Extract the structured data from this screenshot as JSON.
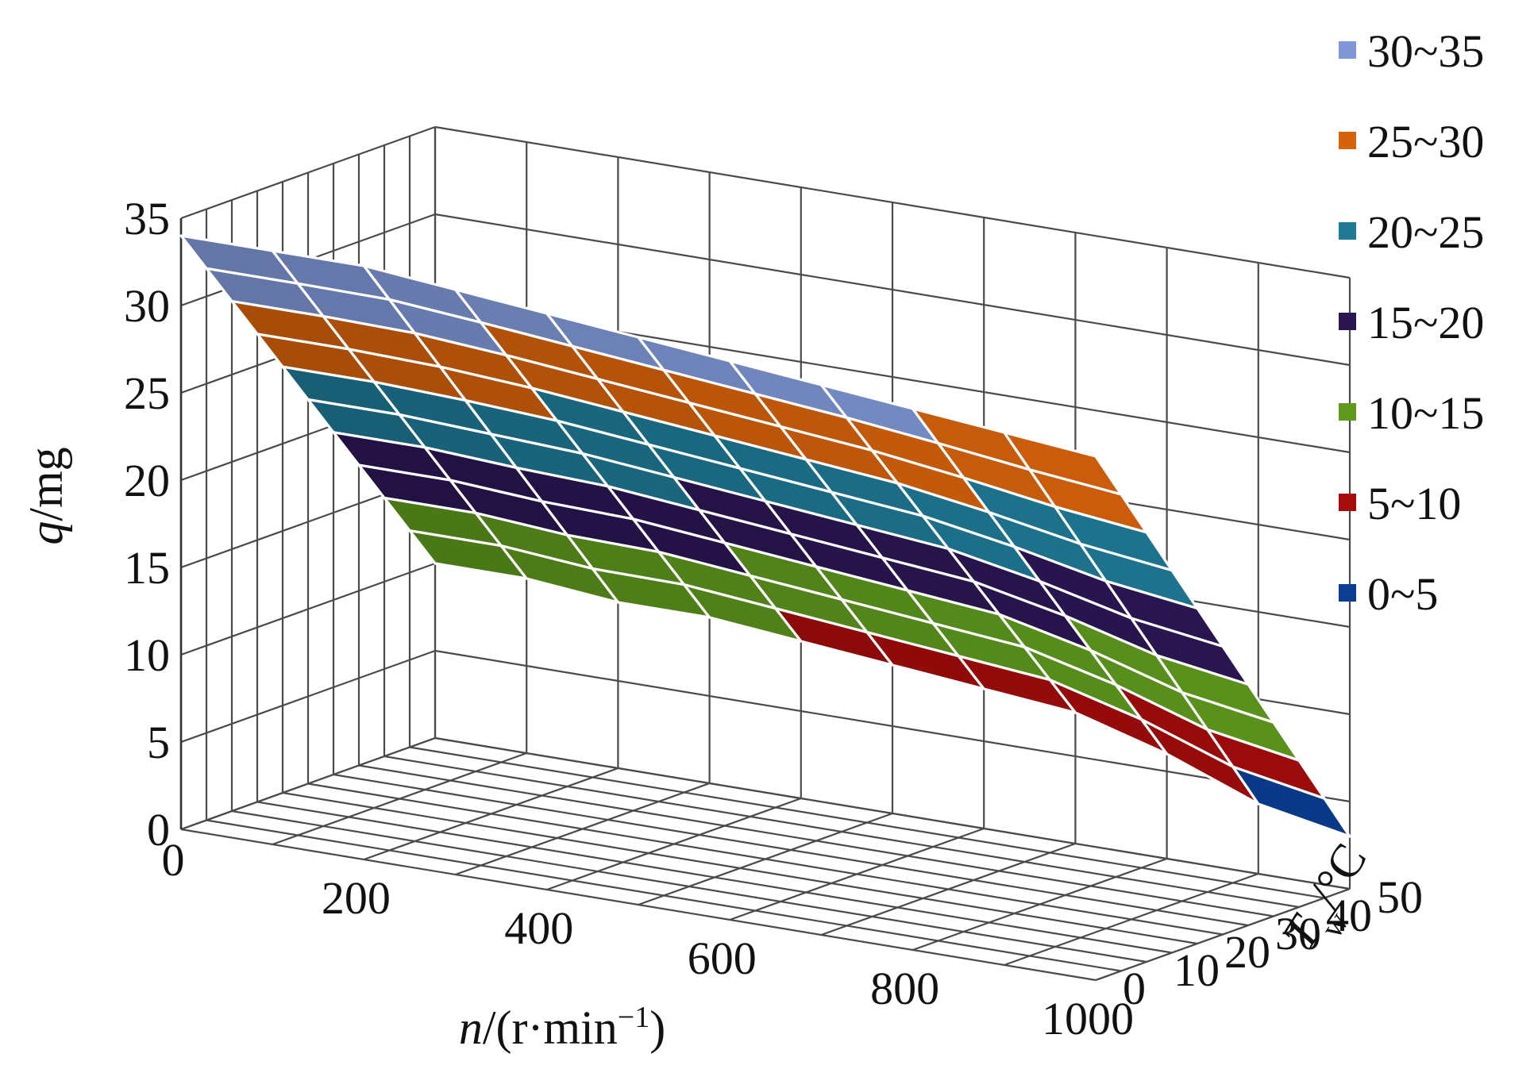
{
  "chart_data": {
    "type": "surface",
    "title": "",
    "xlabel": {
      "var": "n",
      "rest": "/(r·min",
      "sup": "−1",
      "close": ")"
    },
    "ylabel": {
      "var": "q",
      "rest": "/mg"
    },
    "zlabel": {
      "var": "T",
      "sub": "w",
      "rest": "/°C"
    },
    "x_ticks": [
      "0",
      "200",
      "400",
      "600",
      "800",
      "1000"
    ],
    "z_ticks": [
      "0",
      "10",
      "20",
      "30",
      "40",
      "50"
    ],
    "y_ticks": [
      "0",
      "5",
      "10",
      "15",
      "20",
      "25",
      "30",
      "35"
    ],
    "xlim": [
      0,
      1000
    ],
    "zlim": [
      0,
      50
    ],
    "ylim": [
      0,
      35
    ],
    "legend_position": "right",
    "legend": [
      {
        "label": "30~35",
        "color": "#7f97d6"
      },
      {
        "label": "25~30",
        "color": "#d6620c"
      },
      {
        "label": "20~25",
        "color": "#1f7a96"
      },
      {
        "label": "15~20",
        "color": "#2b1654"
      },
      {
        "label": "10~15",
        "color": "#5f9a1e"
      },
      {
        "label": "5~10",
        "color": "#a50c0c"
      },
      {
        "label": "0~5",
        "color": "#0b3d91"
      }
    ],
    "grid": true,
    "surface": {
      "n_values": [
        0,
        100,
        200,
        300,
        400,
        500,
        600,
        700,
        800,
        900,
        1000
      ],
      "tw_values": [
        0,
        5,
        10,
        15,
        20,
        25,
        30,
        35,
        40,
        45,
        50
      ],
      "q_at_tw0": [
        34,
        34,
        34,
        33.5,
        33,
        32.5,
        32,
        31.5,
        31,
        30.5,
        30
      ],
      "q_at_tw50": [
        10,
        10,
        9.5,
        9.5,
        9,
        8.5,
        8,
        7.5,
        6,
        4,
        3
      ]
    }
  }
}
